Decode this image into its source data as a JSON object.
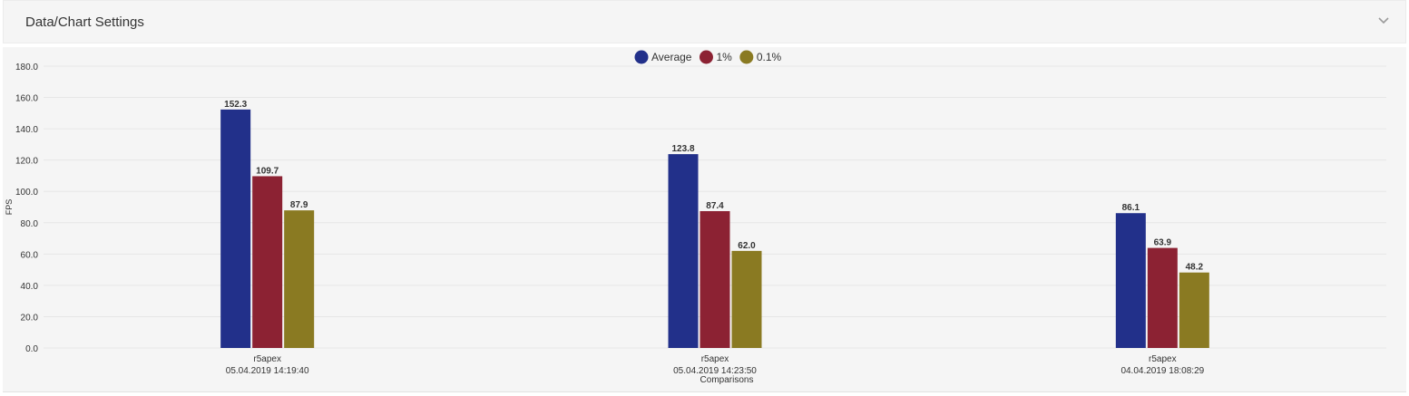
{
  "settings": {
    "title": "Data/Chart Settings",
    "expand_icon": "chevron-down-icon"
  },
  "chart_data": {
    "type": "bar",
    "xlabel": "Comparisons",
    "ylabel": "FPS",
    "ylim": [
      0,
      180
    ],
    "ytick_step": 20,
    "ytick_labels": [
      "0.0",
      "20.0",
      "40.0",
      "60.0",
      "80.0",
      "100.0",
      "120.0",
      "140.0",
      "160.0",
      "180.0"
    ],
    "grid": true,
    "legend_position": "top-center",
    "categories": [
      {
        "name": "r5apex",
        "date": "05.04.2019 14:19:40"
      },
      {
        "name": "r5apex",
        "date": "05.04.2019 14:23:50"
      },
      {
        "name": "r5apex",
        "date": "04.04.2019 18:08:29"
      }
    ],
    "series": [
      {
        "name": "Average",
        "color": "#22308a",
        "values": [
          152.3,
          123.8,
          86.1
        ]
      },
      {
        "name": "1%",
        "color": "#8c2233",
        "values": [
          109.7,
          87.4,
          63.9
        ]
      },
      {
        "name": "0.1%",
        "color": "#8a7a22",
        "values": [
          87.9,
          62.0,
          48.2
        ]
      }
    ]
  }
}
